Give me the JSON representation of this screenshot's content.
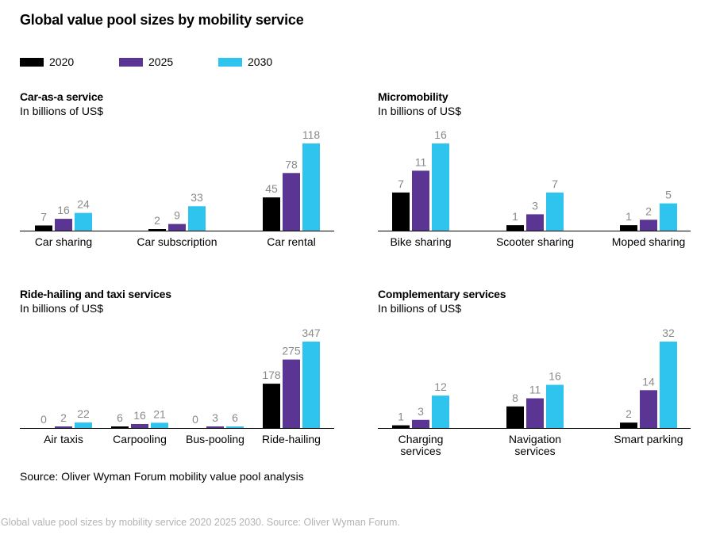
{
  "title": "Global value pool sizes by mobility service",
  "legend": [
    {
      "label": "2020",
      "color": "#000000"
    },
    {
      "label": "2025",
      "color": "#5b3593"
    },
    {
      "label": "2030",
      "color": "#2ec4ee"
    }
  ],
  "colors": {
    "value_label": "#8a8a8a",
    "axis": "#000000"
  },
  "source": "Source: Oliver Wyman Forum mobility value pool analysis",
  "caption": "Global value pool sizes by mobility service 2020 2025 2030. Source: Oliver Wyman Forum.",
  "chart_data": [
    {
      "type": "bar",
      "title": "Car-as-a service",
      "subtitle": "In billions of US$",
      "categories": [
        [
          "Car sharing"
        ],
        [
          "Car subscription"
        ],
        [
          "Car rental"
        ]
      ],
      "series": [
        {
          "name": "2020",
          "values": [
            7,
            2,
            45
          ]
        },
        {
          "name": "2025",
          "values": [
            16,
            9,
            78
          ]
        },
        {
          "name": "2030",
          "values": [
            24,
            33,
            118
          ]
        }
      ]
    },
    {
      "type": "bar",
      "title": "Micromobility",
      "subtitle": "In billions of US$",
      "categories": [
        [
          "Bike sharing"
        ],
        [
          "Scooter sharing"
        ],
        [
          "Moped sharing"
        ]
      ],
      "series": [
        {
          "name": "2020",
          "values": [
            7,
            1,
            1
          ]
        },
        {
          "name": "2025",
          "values": [
            11,
            3,
            2
          ]
        },
        {
          "name": "2030",
          "values": [
            16,
            7,
            5
          ]
        }
      ]
    },
    {
      "type": "bar",
      "title": "Ride-hailing and taxi services",
      "subtitle": "In billions of US$",
      "categories": [
        [
          "Air taxis"
        ],
        [
          "Carpooling"
        ],
        [
          "Bus-pooling"
        ],
        [
          "Ride-hailing"
        ]
      ],
      "series": [
        {
          "name": "2020",
          "values": [
            0,
            6,
            0,
            178
          ]
        },
        {
          "name": "2025",
          "values": [
            2,
            16,
            3,
            275
          ]
        },
        {
          "name": "2030",
          "values": [
            22,
            21,
            6,
            347
          ]
        }
      ]
    },
    {
      "type": "bar",
      "title": "Complementary services",
      "subtitle": "In billions of US$",
      "categories": [
        [
          "Charging",
          "services"
        ],
        [
          "Navigation",
          "services"
        ],
        [
          "Smart parking"
        ]
      ],
      "series": [
        {
          "name": "2020",
          "values": [
            1,
            8,
            2
          ]
        },
        {
          "name": "2025",
          "values": [
            3,
            11,
            14
          ]
        },
        {
          "name": "2030",
          "values": [
            12,
            16,
            32
          ]
        }
      ]
    }
  ]
}
